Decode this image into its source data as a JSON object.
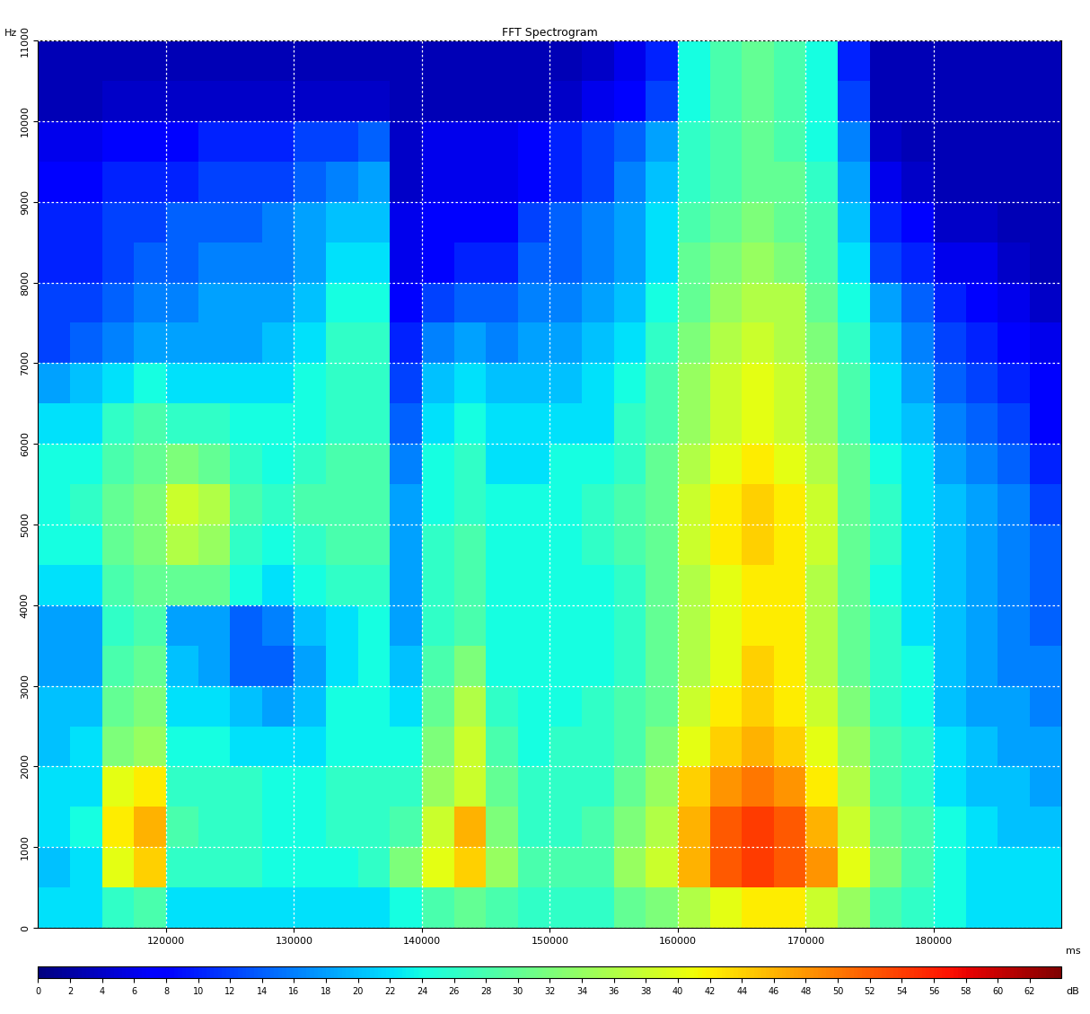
{
  "chart_data": {
    "type": "heatmap",
    "title": "FFT Spectrogram",
    "x_label": "ms",
    "y_label": "Hz",
    "colorbar_label": "dB",
    "color": "jet",
    "grid": true,
    "xlim": [
      110000,
      190000
    ],
    "ylim": [
      0,
      11000
    ],
    "xticks": [
      120000,
      130000,
      140000,
      150000,
      160000,
      170000,
      180000
    ],
    "yticks": [
      0,
      1000,
      2000,
      3000,
      4000,
      5000,
      6000,
      7000,
      8000,
      9000,
      10000,
      11000
    ],
    "colorbar_range": [
      0,
      64
    ],
    "colorbar_ticks": [
      0,
      2,
      4,
      6,
      8,
      10,
      12,
      14,
      16,
      18,
      20,
      22,
      24,
      26,
      28,
      30,
      32,
      34,
      36,
      38,
      40,
      42,
      44,
      46,
      48,
      50,
      52,
      54,
      56,
      58,
      60,
      62
    ],
    "x_edges": [
      110000,
      112500,
      115000,
      117500,
      120000,
      122500,
      125000,
      127500,
      130000,
      132500,
      135000,
      137500,
      140000,
      142500,
      145000,
      147500,
      150000,
      152500,
      155000,
      157500,
      160000,
      162500,
      165000,
      167500,
      170000,
      172500,
      175000,
      177500,
      180000,
      182500,
      185000,
      187500,
      190000
    ],
    "y_edges": [
      0,
      500,
      1000,
      1500,
      2000,
      2500,
      3000,
      3500,
      4000,
      4500,
      5000,
      5500,
      6000,
      6500,
      7000,
      7500,
      8000,
      8500,
      9000,
      9500,
      10000,
      10500,
      11000
    ],
    "cells": [
      [
        22,
        20,
        22,
        22,
        20,
        20,
        18,
        18,
        22,
        24,
        24,
        24,
        22,
        18,
        12,
        12,
        10,
        10,
        8,
        6,
        3,
        3
      ],
      [
        22,
        22,
        24,
        22,
        22,
        20,
        18,
        18,
        22,
        24,
        26,
        24,
        22,
        20,
        14,
        12,
        10,
        10,
        8,
        6,
        3,
        3
      ],
      [
        26,
        40,
        42,
        40,
        32,
        30,
        28,
        26,
        28,
        30,
        30,
        28,
        26,
        22,
        16,
        14,
        12,
        12,
        10,
        8,
        4,
        3
      ],
      [
        28,
        44,
        46,
        42,
        34,
        32,
        30,
        28,
        30,
        32,
        32,
        30,
        28,
        24,
        18,
        16,
        14,
        12,
        10,
        8,
        4,
        3
      ],
      [
        22,
        26,
        28,
        26,
        24,
        22,
        20,
        18,
        30,
        36,
        38,
        32,
        26,
        22,
        18,
        16,
        14,
        14,
        10,
        8,
        4,
        3
      ],
      [
        22,
        26,
        26,
        26,
        24,
        22,
        18,
        18,
        30,
        34,
        36,
        30,
        26,
        22,
        18,
        18,
        16,
        14,
        12,
        10,
        4,
        3
      ],
      [
        22,
        26,
        26,
        26,
        22,
        20,
        14,
        14,
        24,
        26,
        28,
        26,
        24,
        22,
        18,
        18,
        16,
        14,
        12,
        10,
        4,
        3
      ],
      [
        22,
        24,
        24,
        24,
        22,
        18,
        14,
        16,
        22,
        24,
        26,
        24,
        24,
        22,
        20,
        18,
        16,
        16,
        12,
        10,
        4,
        3
      ],
      [
        22,
        24,
        24,
        24,
        22,
        20,
        18,
        20,
        24,
        26,
        28,
        26,
        24,
        24,
        22,
        20,
        18,
        18,
        14,
        12,
        4,
        3
      ],
      [
        22,
        24,
        26,
        26,
        24,
        24,
        22,
        22,
        26,
        28,
        28,
        28,
        26,
        26,
        26,
        24,
        22,
        20,
        16,
        12,
        4,
        3
      ],
      [
        22,
        26,
        26,
        26,
        24,
        24,
        24,
        24,
        26,
        28,
        28,
        28,
        26,
        26,
        26,
        24,
        22,
        20,
        18,
        14,
        4,
        3
      ],
      [
        24,
        32,
        28,
        26,
        24,
        22,
        20,
        18,
        18,
        18,
        18,
        16,
        14,
        12,
        10,
        8,
        6,
        6,
        4,
        4,
        3,
        3
      ],
      [
        28,
        40,
        38,
        34,
        32,
        30,
        28,
        26,
        26,
        26,
        24,
        24,
        22,
        20,
        16,
        12,
        8,
        8,
        6,
        6,
        3,
        3
      ],
      [
        30,
        44,
        46,
        38,
        38,
        36,
        32,
        28,
        28,
        28,
        26,
        26,
        24,
        22,
        18,
        14,
        10,
        8,
        6,
        6,
        3,
        3
      ],
      [
        28,
        34,
        32,
        30,
        28,
        26,
        24,
        24,
        24,
        24,
        24,
        22,
        22,
        20,
        16,
        14,
        10,
        8,
        6,
        6,
        3,
        3
      ],
      [
        26,
        28,
        26,
        26,
        24,
        24,
        24,
        24,
        24,
        24,
        24,
        22,
        22,
        20,
        18,
        16,
        14,
        12,
        8,
        8,
        3,
        3
      ],
      [
        26,
        28,
        26,
        26,
        26,
        24,
        24,
        24,
        24,
        24,
        24,
        24,
        22,
        20,
        18,
        16,
        14,
        14,
        10,
        10,
        4,
        3
      ],
      [
        26,
        28,
        28,
        26,
        26,
        26,
        24,
        24,
        24,
        26,
        26,
        24,
        22,
        22,
        20,
        18,
        16,
        16,
        12,
        12,
        6,
        4
      ],
      [
        30,
        34,
        32,
        30,
        28,
        28,
        26,
        26,
        26,
        28,
        28,
        26,
        26,
        24,
        22,
        20,
        18,
        18,
        16,
        14,
        8,
        6
      ],
      [
        32,
        38,
        36,
        34,
        32,
        30,
        30,
        30,
        30,
        30,
        30,
        30,
        28,
        28,
        26,
        24,
        22,
        22,
        20,
        18,
        12,
        10
      ],
      [
        36,
        46,
        46,
        44,
        40,
        38,
        36,
        36,
        36,
        38,
        38,
        36,
        34,
        34,
        32,
        30,
        30,
        28,
        26,
        26,
        24,
        24
      ],
      [
        40,
        52,
        52,
        48,
        44,
        42,
        40,
        40,
        40,
        42,
        42,
        40,
        38,
        38,
        36,
        34,
        32,
        30,
        28,
        28,
        28,
        28
      ],
      [
        42,
        54,
        54,
        50,
        46,
        44,
        44,
        42,
        42,
        44,
        44,
        42,
        40,
        40,
        38,
        36,
        34,
        32,
        30,
        30,
        30,
        30
      ],
      [
        42,
        52,
        52,
        48,
        44,
        42,
        42,
        42,
        42,
        42,
        42,
        40,
        38,
        38,
        36,
        36,
        32,
        30,
        30,
        28,
        28,
        28
      ],
      [
        38,
        48,
        46,
        42,
        40,
        38,
        36,
        36,
        36,
        38,
        38,
        36,
        34,
        34,
        32,
        30,
        28,
        28,
        26,
        24,
        24,
        24
      ],
      [
        34,
        40,
        38,
        36,
        34,
        32,
        30,
        30,
        30,
        30,
        30,
        30,
        28,
        28,
        26,
        24,
        22,
        20,
        18,
        16,
        12,
        10
      ],
      [
        28,
        32,
        30,
        28,
        28,
        26,
        26,
        26,
        24,
        26,
        26,
        24,
        22,
        22,
        20,
        18,
        12,
        10,
        6,
        4,
        3,
        3
      ],
      [
        26,
        28,
        28,
        26,
        26,
        24,
        24,
        22,
        22,
        22,
        22,
        22,
        20,
        18,
        16,
        14,
        10,
        8,
        4,
        3,
        3,
        3
      ],
      [
        24,
        24,
        24,
        22,
        22,
        20,
        20,
        20,
        20,
        20,
        20,
        18,
        16,
        14,
        12,
        10,
        6,
        4,
        3,
        3,
        3,
        3
      ],
      [
        22,
        22,
        22,
        20,
        20,
        18,
        18,
        18,
        18,
        18,
        18,
        16,
        14,
        12,
        10,
        8,
        6,
        4,
        3,
        3,
        3,
        3
      ],
      [
        22,
        22,
        20,
        20,
        18,
        18,
        16,
        16,
        16,
        16,
        16,
        14,
        12,
        10,
        8,
        6,
        4,
        3,
        3,
        3,
        3,
        3
      ],
      [
        22,
        22,
        20,
        18,
        18,
        16,
        16,
        14,
        14,
        14,
        12,
        10,
        8,
        8,
        6,
        4,
        3,
        3,
        3,
        3,
        3,
        3
      ]
    ]
  }
}
